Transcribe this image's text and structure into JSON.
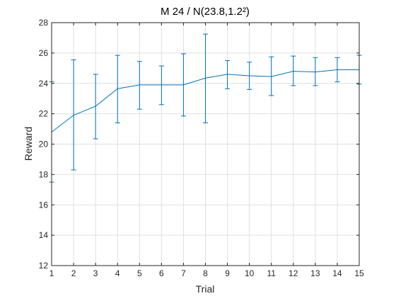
{
  "chart_data": {
    "type": "line",
    "title": "M 24 / N(23.8,1.2²)",
    "xlabel": "Trial",
    "ylabel": "Reward",
    "xlim": [
      1,
      15
    ],
    "ylim": [
      12,
      28
    ],
    "xticks": [
      1,
      2,
      3,
      4,
      5,
      6,
      7,
      8,
      9,
      10,
      11,
      12,
      13,
      14,
      15
    ],
    "yticks": [
      12,
      14,
      16,
      18,
      20,
      22,
      24,
      26,
      28
    ],
    "grid": true,
    "legend": "none",
    "series": [
      {
        "color": "#0072BD",
        "x": [
          1,
          2,
          3,
          4,
          5,
          6,
          7,
          8,
          9,
          10,
          11,
          12,
          13,
          14,
          15
        ],
        "y": [
          20.8,
          21.9,
          22.5,
          23.65,
          23.9,
          23.9,
          23.9,
          24.35,
          24.6,
          24.5,
          24.45,
          24.8,
          24.75,
          24.9,
          24.9
        ],
        "lower": [
          17.5,
          18.3,
          20.35,
          21.4,
          22.3,
          22.6,
          21.85,
          21.4,
          23.65,
          23.6,
          23.2,
          23.85,
          23.85,
          24.1,
          23.95
        ],
        "upper": [
          24.1,
          25.55,
          24.6,
          25.85,
          25.45,
          25.15,
          25.95,
          27.25,
          25.5,
          25.4,
          25.75,
          25.8,
          25.7,
          25.7,
          25.85
        ]
      }
    ]
  }
}
